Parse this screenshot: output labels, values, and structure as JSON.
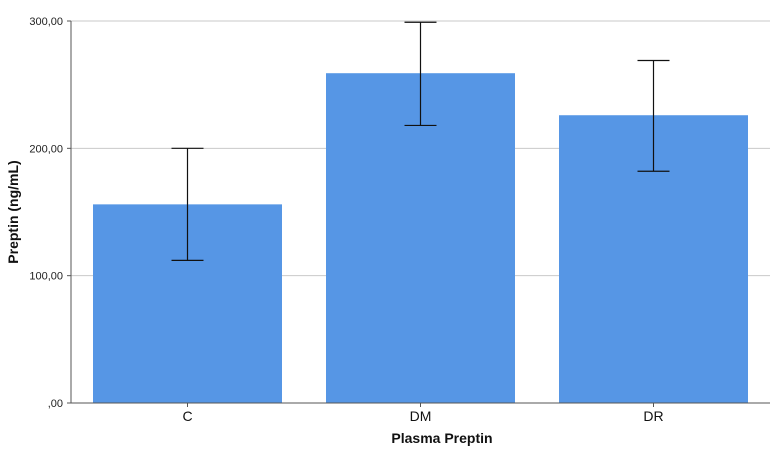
{
  "chart_data": {
    "type": "bar",
    "title": "",
    "xlabel": "Plasma Preptin",
    "ylabel": "Preptin (ng/mL)",
    "categories": [
      "C",
      "DM",
      "DR"
    ],
    "values": [
      156,
      259,
      226
    ],
    "error_bars": {
      "lower": [
        112,
        218,
        182
      ],
      "upper": [
        200,
        299,
        269
      ]
    },
    "ylim": [
      0,
      300
    ],
    "yticks": [
      0,
      100,
      200,
      300
    ],
    "ytick_labels": [
      ",00",
      "100,00",
      "200,00",
      "300,00"
    ],
    "grid": true,
    "legend": "none",
    "colors": {
      "bar": "#5696E5",
      "grid": "#C9C9C9",
      "axis": "#555555",
      "error_bar": "#111111"
    }
  }
}
